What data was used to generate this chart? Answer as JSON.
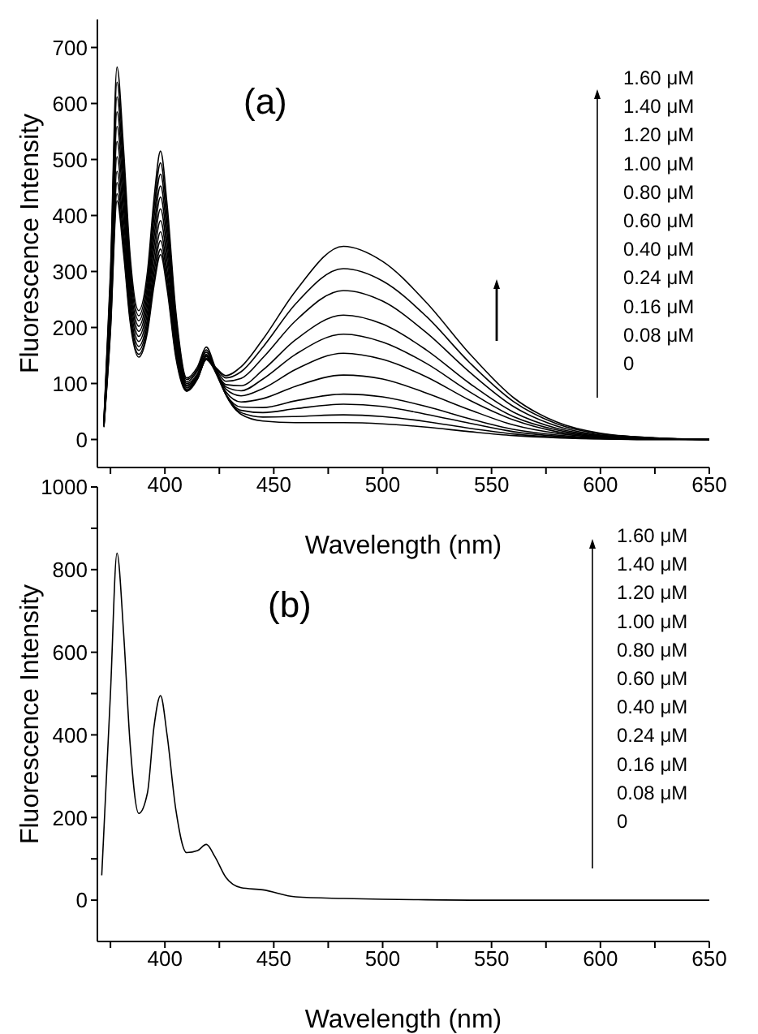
{
  "chart_data": [
    {
      "type": "line",
      "xlabel": "Wavelength (nm)",
      "ylabel": "Fluorescence Intensity",
      "annotations": [
        "(a)",
        "1.60 μM",
        "1.40 μM",
        "1.20 μM",
        "1.00 μM",
        "0.80 μM",
        "0.60 μM",
        "0.40 μM",
        "0.24 μM",
        "0.16 μM",
        "0.08 μM",
        "0"
      ],
      "x": [
        372,
        375,
        378,
        381,
        384,
        388,
        392,
        395,
        398,
        401,
        405,
        410,
        415,
        419,
        423,
        428,
        435,
        445,
        460,
        482,
        500,
        520,
        540,
        560,
        580,
        600,
        625,
        650
      ],
      "series": [
        {
          "color": "#000000",
          "values": [
            35,
            300,
            665,
            520,
            330,
            230,
            300,
            430,
            515,
            420,
            230,
            110,
            130,
            165,
            130,
            80,
            45,
            33,
            30,
            30,
            28,
            22,
            14,
            7,
            3,
            1,
            0,
            0
          ]
        },
        {
          "color": "#000000",
          "values": [
            34,
            288,
            638,
            499,
            317,
            221,
            288,
            413,
            494,
            403,
            221,
            107,
            126,
            160,
            127,
            80,
            48,
            40,
            41,
            44,
            41,
            32,
            20,
            10,
            4,
            1,
            0,
            0
          ]
        },
        {
          "color": "#000000",
          "values": [
            32,
            276,
            612,
            478,
            304,
            212,
            276,
            396,
            474,
            386,
            212,
            103,
            123,
            156,
            125,
            81,
            52,
            48,
            55,
            63,
            59,
            45,
            29,
            14,
            6,
            2,
            0,
            0
          ]
        },
        {
          "color": "#000000",
          "values": [
            31,
            264,
            585,
            458,
            290,
            202,
            264,
            378,
            453,
            370,
            202,
            100,
            118,
            152,
            122,
            81,
            58,
            57,
            69,
            81,
            76,
            59,
            37,
            18,
            8,
            3,
            1,
            0
          ]
        },
        {
          "color": "#000000",
          "values": [
            29,
            252,
            559,
            437,
            277,
            193,
            252,
            361,
            433,
            353,
            193,
            97,
            116,
            150,
            123,
            85,
            67,
            73,
            95,
            115,
            108,
            83,
            53,
            26,
            11,
            4,
            1,
            0
          ]
        },
        {
          "color": "#000000",
          "values": [
            28,
            240,
            532,
            416,
            264,
            184,
            240,
            344,
            412,
            336,
            184,
            95,
            114,
            148,
            124,
            90,
            78,
            91,
            125,
            154,
            143,
            112,
            70,
            35,
            14,
            5,
            1,
            0
          ]
        },
        {
          "color": "#000000",
          "values": [
            27,
            228,
            505,
            395,
            251,
            175,
            228,
            327,
            391,
            319,
            175,
            92,
            112,
            145,
            124,
            94,
            87,
            108,
            152,
            188,
            174,
            136,
            85,
            41,
            17,
            6,
            2,
            0
          ]
        },
        {
          "color": "#000000",
          "values": [
            25,
            216,
            479,
            374,
            238,
            166,
            216,
            310,
            371,
            302,
            166,
            89,
            110,
            143,
            124,
            98,
            96,
            124,
            178,
            222,
            206,
            160,
            100,
            49,
            20,
            7,
            2,
            0
          ]
        },
        {
          "color": "#000000",
          "values": [
            24,
            207,
            459,
            359,
            228,
            159,
            207,
            297,
            355,
            290,
            159,
            88,
            110,
            143,
            127,
            104,
            109,
            146,
            212,
            266,
            247,
            191,
            120,
            59,
            24,
            8,
            2,
            0
          ]
        },
        {
          "color": "#000000",
          "values": [
            23,
            198,
            439,
            343,
            218,
            152,
            198,
            284,
            340,
            277,
            152,
            87,
            109,
            143,
            129,
            110,
            121,
            165,
            242,
            305,
            283,
            220,
            137,
            68,
            28,
            10,
            3,
            0
          ]
        },
        {
          "color": "#000000",
          "values": [
            22,
            192,
            426,
            333,
            211,
            147,
            192,
            275,
            330,
            269,
            147,
            86,
            108,
            144,
            130,
            114,
            130,
            179,
            265,
            345,
            318,
            245,
            153,
            75,
            31,
            11,
            3,
            0
          ]
        }
      ],
      "xlim": [
        369,
        650
      ],
      "ylim": [
        -50,
        750
      ],
      "xticks": [
        {
          "value": 375,
          "label": null
        },
        400,
        {
          "value": 425,
          "label": null
        },
        450,
        {
          "value": 475,
          "label": null
        },
        500,
        {
          "value": 525,
          "label": null
        },
        550,
        {
          "value": 575,
          "label": null
        },
        600,
        {
          "value": 625,
          "label": null
        },
        650
      ],
      "yticks": [
        0,
        100,
        200,
        300,
        400,
        500,
        600,
        700
      ],
      "legend": false,
      "grid": false
    },
    {
      "type": "line",
      "xlabel": "Wavelength (nm)",
      "ylabel": "Fluorescence Intensity",
      "annotations": [
        "(b)",
        "1.60 μM",
        "1.40 μM",
        "1.20 μM",
        "1.00 μM",
        "0.80 μM",
        "0.60 μM",
        "0.40 μM",
        "0.24 μM",
        "0.16 μM",
        "0.08 μM",
        "0"
      ],
      "x": [
        371,
        375,
        378,
        381,
        384,
        388,
        392,
        395,
        398,
        401,
        405,
        410,
        415,
        419,
        423,
        428,
        435,
        445,
        460,
        482,
        500,
        520,
        540,
        560,
        580,
        600,
        625,
        650
      ],
      "series": [
        {
          "color": "#000000",
          "values": [
            60,
            500,
            840,
            650,
            380,
            210,
            260,
            420,
            495,
            400,
            220,
            115,
            120,
            135,
            105,
            55,
            30,
            25,
            8,
            4,
            2,
            1,
            0,
            0,
            0,
            0,
            0,
            0
          ]
        }
      ],
      "xlim": [
        369,
        650
      ],
      "ylim": [
        -100,
        1000
      ],
      "xticks": [
        {
          "value": 375,
          "label": null
        },
        400,
        {
          "value": 425,
          "label": null
        },
        450,
        {
          "value": 475,
          "label": null
        },
        500,
        {
          "value": 525,
          "label": null
        },
        550,
        {
          "value": 575,
          "label": null
        },
        600,
        {
          "value": 625,
          "label": null
        },
        650
      ],
      "yticks": [
        0,
        {
          "value": 100,
          "label": null
        },
        200,
        {
          "value": 300,
          "label": null
        },
        400,
        {
          "value": 500,
          "label": null
        },
        600,
        {
          "value": 700,
          "label": null
        },
        800,
        {
          "value": 900,
          "label": null
        },
        1000
      ],
      "legend": false,
      "grid": false
    }
  ]
}
